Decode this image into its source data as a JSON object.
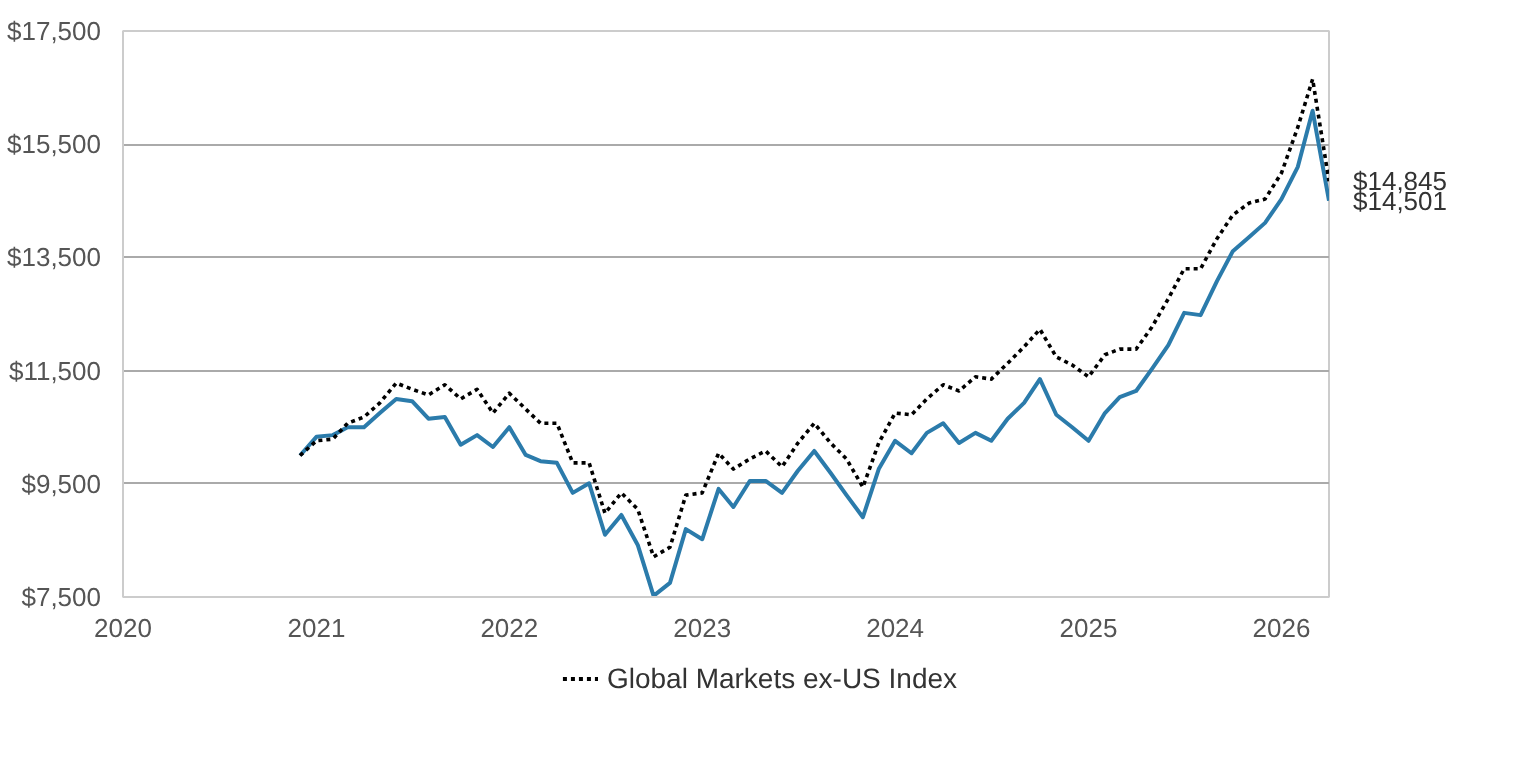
{
  "chart_data": {
    "type": "line",
    "x": [
      "2020-12",
      "2021-01",
      "2021-02",
      "2021-03",
      "2021-04",
      "2021-05",
      "2021-06",
      "2021-07",
      "2021-08",
      "2021-09",
      "2021-10",
      "2021-11",
      "2021-12",
      "2022-01",
      "2022-02",
      "2022-03",
      "2022-04",
      "2022-05",
      "2022-06",
      "2022-07",
      "2022-08",
      "2022-09",
      "2022-10",
      "2022-11",
      "2022-12",
      "2023-01",
      "2023-02",
      "2023-03",
      "2023-04",
      "2023-05",
      "2023-06",
      "2023-07",
      "2023-08",
      "2023-09",
      "2023-10",
      "2023-11",
      "2023-12",
      "2024-01",
      "2024-02",
      "2024-03",
      "2024-04",
      "2024-05",
      "2024-06",
      "2024-07",
      "2024-08",
      "2024-09",
      "2024-10",
      "2024-11",
      "2024-12",
      "2025-01",
      "2025-02",
      "2025-03",
      "2025-04",
      "2025-05",
      "2025-06",
      "2025-07",
      "2025-08",
      "2025-09",
      "2025-10",
      "2025-11",
      "2025-12",
      "2026-01",
      "2026-02",
      "2026-03",
      "2026-04"
    ],
    "series": [
      {
        "color": "#2b7bab",
        "line_style": "solid",
        "values": [
          10000,
          10330,
          10360,
          10500,
          10500,
          10750,
          11000,
          10960,
          10650,
          10680,
          10190,
          10360,
          10150,
          10500,
          10010,
          9900,
          9870,
          9340,
          9510,
          8600,
          8950,
          8420,
          7520,
          7750,
          8700,
          8520,
          9410,
          9090,
          9550,
          9550,
          9340,
          9730,
          10080,
          9690,
          9300,
          8910,
          9760,
          10260,
          10040,
          10400,
          10570,
          10220,
          10400,
          10260,
          10650,
          10930,
          11350,
          10720,
          10500,
          10260,
          10750,
          11030,
          11140,
          11530,
          11950,
          12520,
          12480,
          13080,
          13610,
          13860,
          14110,
          14530,
          15100,
          16090,
          14501
        ]
      },
      {
        "name": "Global Markets ex-US Index",
        "color": "#000000",
        "line_style": "dotted",
        "values": [
          10000,
          10260,
          10290,
          10570,
          10680,
          10930,
          11280,
          11170,
          11070,
          11250,
          11000,
          11170,
          10750,
          11100,
          10820,
          10570,
          10570,
          9870,
          9870,
          8980,
          9340,
          9050,
          8210,
          8380,
          9300,
          9340,
          10040,
          9760,
          9940,
          10080,
          9800,
          10220,
          10570,
          10220,
          9940,
          9440,
          10220,
          10750,
          10720,
          11000,
          11250,
          11140,
          11390,
          11350,
          11630,
          11920,
          12230,
          11740,
          11600,
          11390,
          11780,
          11880,
          11880,
          12270,
          12770,
          13300,
          13300,
          13830,
          14250,
          14460,
          14530,
          14990,
          15800,
          16650,
          14845
        ]
      }
    ],
    "xlim": [
      "2020",
      "2026-04"
    ],
    "xticks": [
      {
        "value": "2020",
        "label": "2020"
      },
      {
        "value": "2021",
        "label": "2021"
      },
      {
        "value": "2022",
        "label": "2022"
      },
      {
        "value": "2023",
        "label": "2023"
      },
      {
        "value": "2024",
        "label": "2024"
      },
      {
        "value": "2025",
        "label": "2025"
      },
      {
        "value": "2026",
        "label": "2026"
      }
    ],
    "ylim": [
      7500,
      17500
    ],
    "yticks": [
      {
        "value": 7500,
        "label": "$7,500"
      },
      {
        "value": 9500,
        "label": "$9,500"
      },
      {
        "value": 11500,
        "label": "$11,500"
      },
      {
        "value": 13500,
        "label": "$13,500"
      },
      {
        "value": 15500,
        "label": "$15,500"
      },
      {
        "value": 17500,
        "label": "$17,500"
      }
    ],
    "annotations": [
      {
        "text": "$14,845",
        "x": "2026-04",
        "y": 14845
      },
      {
        "text": "$14,501",
        "x": "2026-04",
        "y": 14501
      }
    ],
    "grid": "y",
    "legend": "bottom",
    "marker": "none"
  }
}
